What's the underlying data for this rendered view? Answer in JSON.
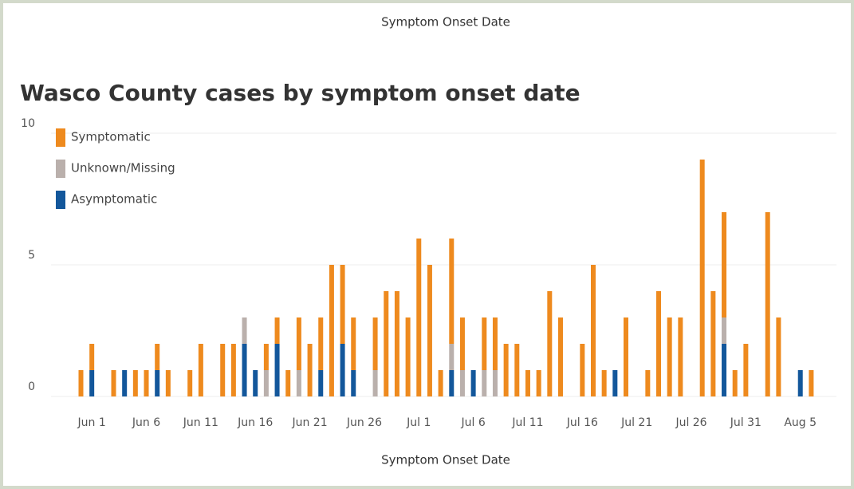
{
  "header": "Symptom Onset Date",
  "chart_data": {
    "type": "bar",
    "stacked": true,
    "title": "Wasco County cases by symptom onset date",
    "xlabel": "Symptom Onset Date",
    "categories": [
      null,
      "Jun 1",
      null,
      null,
      null,
      null,
      "Jun 6",
      null,
      null,
      null,
      null,
      "Jun 11",
      null,
      null,
      null,
      null,
      "Jun 16",
      null,
      null,
      null,
      null,
      "Jun 21",
      null,
      null,
      null,
      null,
      "Jun 26",
      null,
      null,
      null,
      null,
      "Jul 1",
      null,
      null,
      null,
      null,
      "Jul 6",
      null,
      null,
      null,
      null,
      "Jul 11",
      null,
      null,
      null,
      null,
      "Jul 16",
      null,
      null,
      null,
      null,
      "Jul 21",
      null,
      null,
      null,
      null,
      "Jul 26",
      null,
      null,
      null,
      null,
      "Jul 31",
      null,
      null,
      null,
      null,
      "Aug 5",
      null
    ],
    "series": [
      {
        "name": "Symptomatic",
        "color": "#ee8a1e",
        "values": [
          1,
          1,
          0,
          1,
          0,
          1,
          1,
          1,
          1,
          0,
          1,
          2,
          0,
          2,
          2,
          0,
          0,
          1,
          1,
          1,
          2,
          2,
          2,
          5,
          3,
          2,
          0,
          2,
          4,
          4,
          3,
          6,
          5,
          1,
          4,
          2,
          0,
          2,
          2,
          2,
          2,
          1,
          1,
          4,
          3,
          0,
          2,
          5,
          1,
          0,
          3,
          0,
          1,
          4,
          3,
          3,
          0,
          9,
          4,
          4,
          1,
          2,
          0,
          7,
          3,
          0,
          0,
          1
        ]
      },
      {
        "name": "Unknown/Missing",
        "color": "#bab0ac",
        "values": [
          0,
          0,
          0,
          0,
          0,
          0,
          0,
          0,
          0,
          0,
          0,
          0,
          0,
          0,
          0,
          1,
          0,
          1,
          0,
          0,
          1,
          0,
          0,
          0,
          0,
          0,
          0,
          1,
          0,
          0,
          0,
          0,
          0,
          0,
          1,
          1,
          0,
          1,
          1,
          0,
          0,
          0,
          0,
          0,
          0,
          0,
          0,
          0,
          0,
          0,
          0,
          0,
          0,
          0,
          0,
          0,
          0,
          0,
          0,
          1,
          0,
          0,
          0,
          0,
          0,
          0,
          0,
          0
        ]
      },
      {
        "name": "Asymptomatic",
        "color": "#13579b",
        "values": [
          0,
          1,
          0,
          0,
          1,
          0,
          0,
          1,
          0,
          0,
          0,
          0,
          0,
          0,
          0,
          2,
          1,
          0,
          2,
          0,
          0,
          0,
          1,
          0,
          2,
          1,
          0,
          0,
          0,
          0,
          0,
          0,
          0,
          0,
          1,
          0,
          1,
          0,
          0,
          0,
          0,
          0,
          0,
          0,
          0,
          0,
          0,
          0,
          0,
          1,
          0,
          0,
          0,
          0,
          0,
          0,
          0,
          0,
          0,
          2,
          0,
          0,
          0,
          0,
          0,
          0,
          1,
          0
        ]
      }
    ],
    "ylim": [
      0,
      10
    ],
    "yticks": [
      0,
      5,
      10
    ],
    "grid": true,
    "legend": "top-left"
  }
}
